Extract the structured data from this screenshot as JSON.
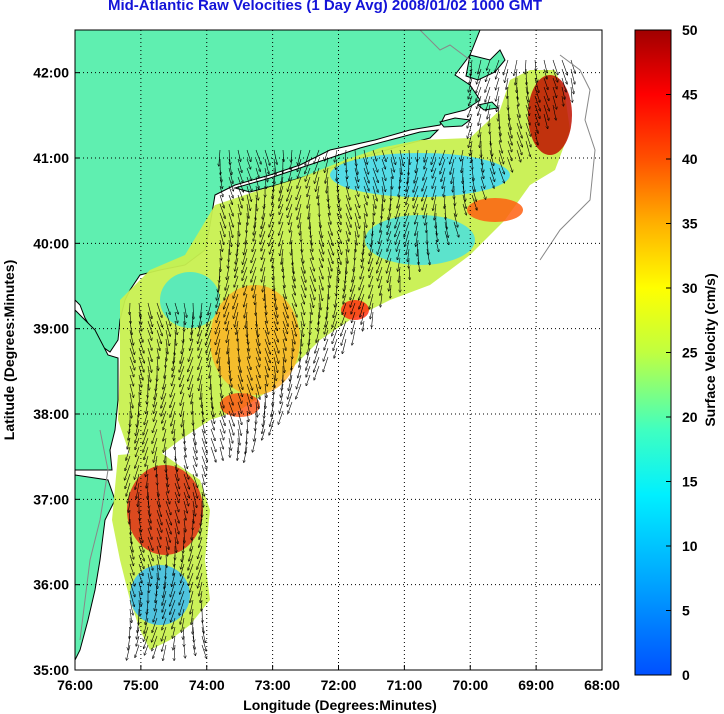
{
  "title": "Mid-Atlantic Raw Velocities (1 Day Avg) 2008/01/02 1000 GMT",
  "chart_data": {
    "type": "map",
    "xlabel": "Longitude (Degrees:Minutes)",
    "ylabel": "Latitude (Degrees:Minutes)",
    "xlim": [
      -76,
      -68
    ],
    "ylim": [
      35,
      42.5
    ],
    "x_ticks": [
      {
        "value": -76,
        "label": "76:00"
      },
      {
        "value": -75,
        "label": "75:00"
      },
      {
        "value": -74,
        "label": "74:00"
      },
      {
        "value": -73,
        "label": "73:00"
      },
      {
        "value": -72,
        "label": "72:00"
      },
      {
        "value": -71,
        "label": "71:00"
      },
      {
        "value": -70,
        "label": "70:00"
      },
      {
        "value": -69,
        "label": "69:00"
      },
      {
        "value": -68,
        "label": "68:00"
      }
    ],
    "y_ticks": [
      {
        "value": 35,
        "label": "35:00"
      },
      {
        "value": 36,
        "label": "36:00"
      },
      {
        "value": 37,
        "label": "37:00"
      },
      {
        "value": 38,
        "label": "38:00"
      },
      {
        "value": 39,
        "label": "39:00"
      },
      {
        "value": 40,
        "label": "40:00"
      },
      {
        "value": 41,
        "label": "41:00"
      },
      {
        "value": 42,
        "label": "42:00"
      }
    ],
    "grid": true,
    "colorbar": {
      "label": "Surface Velocity (cm/s)",
      "range": [
        0,
        50
      ],
      "ticks": [
        "0",
        "5",
        "10",
        "15",
        "20",
        "25",
        "30",
        "35",
        "40",
        "45",
        "50"
      ],
      "colormap": "jet"
    },
    "land_color": "#5fefb0"
  }
}
